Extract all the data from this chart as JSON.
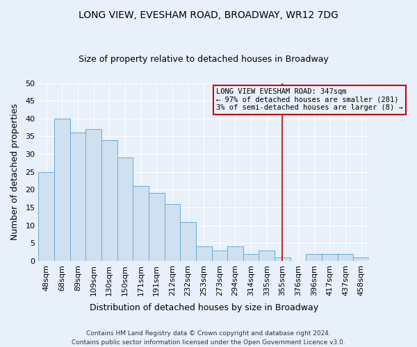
{
  "title": "LONG VIEW, EVESHAM ROAD, BROADWAY, WR12 7DG",
  "subtitle": "Size of property relative to detached houses in Broadway",
  "xlabel": "Distribution of detached houses by size in Broadway",
  "ylabel": "Number of detached properties",
  "bar_color": "#cfe0f0",
  "bar_edge_color": "#6aaad4",
  "background_color": "#e8f0fa",
  "plot_bg_color": "#e8f0fa",
  "grid_color": "#ffffff",
  "categories": [
    "48sqm",
    "68sqm",
    "89sqm",
    "109sqm",
    "130sqm",
    "150sqm",
    "171sqm",
    "191sqm",
    "212sqm",
    "232sqm",
    "253sqm",
    "273sqm",
    "294sqm",
    "314sqm",
    "335sqm",
    "355sqm",
    "376sqm",
    "396sqm",
    "417sqm",
    "437sqm",
    "458sqm"
  ],
  "values": [
    25,
    40,
    36,
    37,
    34,
    29,
    21,
    19,
    16,
    11,
    4,
    3,
    4,
    2,
    3,
    1,
    0,
    2,
    2,
    2,
    1
  ],
  "vline_x": 15,
  "vline_color": "#aa0000",
  "annotation_text": "LONG VIEW EVESHAM ROAD: 347sqm\n← 97% of detached houses are smaller (281)\n3% of semi-detached houses are larger (8) →",
  "annotation_box_edge": "#cc0000",
  "ylim": [
    0,
    50
  ],
  "yticks": [
    0,
    5,
    10,
    15,
    20,
    25,
    30,
    35,
    40,
    45,
    50
  ],
  "footer": "Contains HM Land Registry data © Crown copyright and database right 2024.\nContains public sector information licensed under the Open Government Licence v3.0.",
  "figsize": [
    6.0,
    5.0
  ],
  "dpi": 100
}
